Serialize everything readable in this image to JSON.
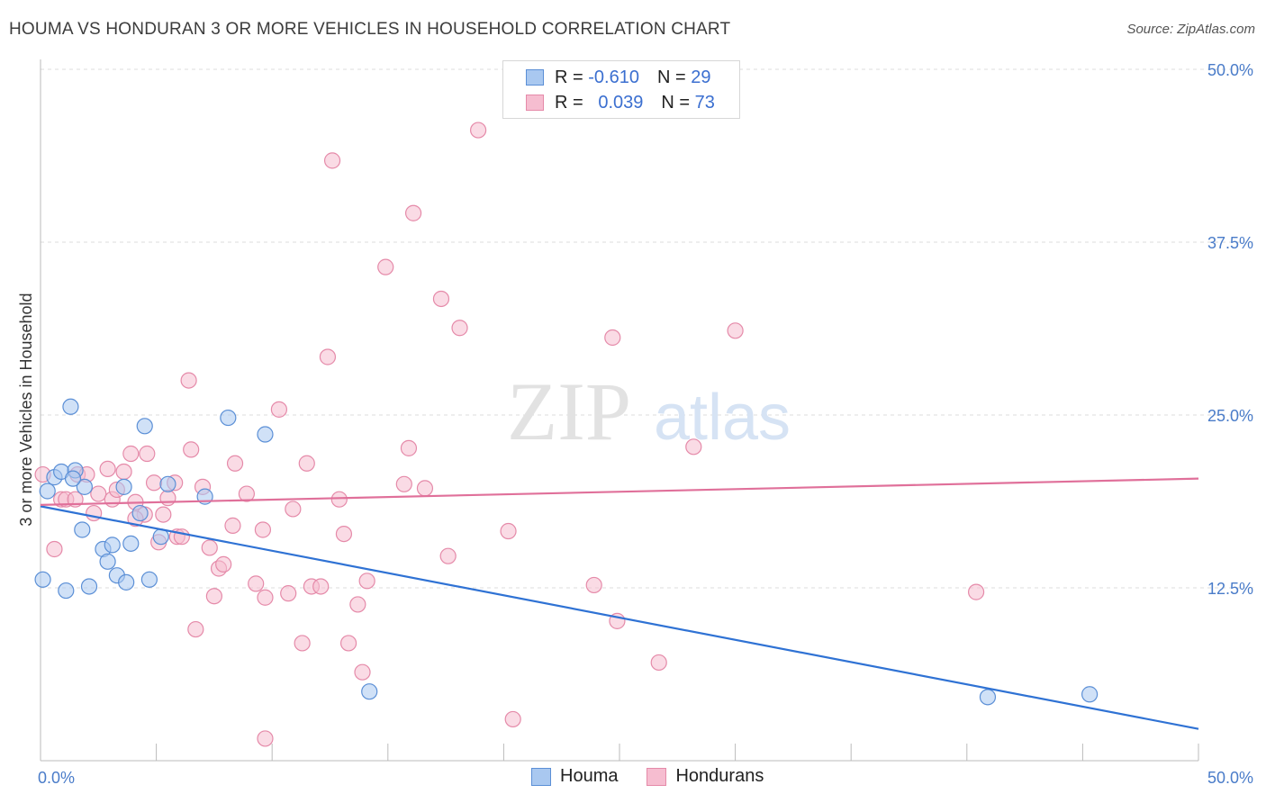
{
  "header": {
    "title": "HOUMA VS HONDURAN 3 OR MORE VEHICLES IN HOUSEHOLD CORRELATION CHART",
    "source": "Source: ZipAtlas.com"
  },
  "legend": {
    "rows": [
      {
        "r_label": "R =",
        "r_value": "-0.610",
        "n_label": "N =",
        "n_value": "29"
      },
      {
        "r_label": "R =",
        "r_value": "0.039",
        "n_label": "N =",
        "n_value": "73"
      }
    ]
  },
  "watermark": {
    "zip": "ZIP",
    "atlas": "atlas"
  },
  "chart_data": {
    "type": "scatter",
    "title": "HOUMA VS HONDURAN 3 OR MORE VEHICLES IN HOUSEHOLD CORRELATION CHART",
    "ylabel": "3 or more Vehicles in Household",
    "xlabel": "",
    "xlim": [
      0,
      50
    ],
    "ylim": [
      0,
      50
    ],
    "x_tick_labels": [
      "0.0%",
      "50.0%"
    ],
    "y_ticks": [
      12.5,
      25.0,
      37.5,
      50.0
    ],
    "y_tick_labels": [
      "12.5%",
      "25.0%",
      "37.5%",
      "50.0%"
    ],
    "grid": true,
    "legend_position": "top-center",
    "colors": {
      "houma_fill": "#a9c8f0",
      "houma_stroke": "#5b8fd6",
      "houma_line": "#2f72d4",
      "hond_fill": "#f6bdd0",
      "hond_stroke": "#e58aa9",
      "hond_line": "#e0709a"
    },
    "series": [
      {
        "name": "Houma",
        "trend": {
          "x": [
            0,
            50
          ],
          "y": [
            18.4,
            2.3
          ]
        },
        "points": [
          [
            0.1,
            13.1
          ],
          [
            0.3,
            19.5
          ],
          [
            0.6,
            20.5
          ],
          [
            0.9,
            20.9
          ],
          [
            1.1,
            12.3
          ],
          [
            1.3,
            25.6
          ],
          [
            1.5,
            21.0
          ],
          [
            1.8,
            16.7
          ],
          [
            1.9,
            19.8
          ],
          [
            2.1,
            12.6
          ],
          [
            2.7,
            15.3
          ],
          [
            2.9,
            14.4
          ],
          [
            3.1,
            15.6
          ],
          [
            3.3,
            13.4
          ],
          [
            3.6,
            19.8
          ],
          [
            3.7,
            12.9
          ],
          [
            3.9,
            15.7
          ],
          [
            4.3,
            17.9
          ],
          [
            4.5,
            24.2
          ],
          [
            4.7,
            13.1
          ],
          [
            5.2,
            16.2
          ],
          [
            5.5,
            20.0
          ],
          [
            7.1,
            19.1
          ],
          [
            8.1,
            24.8
          ],
          [
            9.7,
            23.6
          ],
          [
            14.2,
            5.0
          ],
          [
            40.9,
            4.6
          ],
          [
            45.3,
            4.8
          ],
          [
            1.4,
            20.4
          ]
        ]
      },
      {
        "name": "Hondurans",
        "trend": {
          "x": [
            0,
            50
          ],
          "y": [
            18.5,
            20.4
          ]
        },
        "points": [
          [
            0.1,
            20.7
          ],
          [
            0.6,
            15.3
          ],
          [
            0.9,
            18.9
          ],
          [
            1.1,
            18.9
          ],
          [
            1.5,
            18.9
          ],
          [
            1.6,
            20.7
          ],
          [
            2.0,
            20.7
          ],
          [
            2.3,
            17.9
          ],
          [
            2.5,
            19.3
          ],
          [
            3.1,
            18.9
          ],
          [
            3.3,
            19.6
          ],
          [
            3.6,
            20.9
          ],
          [
            3.9,
            22.2
          ],
          [
            4.1,
            18.7
          ],
          [
            4.5,
            17.8
          ],
          [
            4.6,
            22.2
          ],
          [
            4.9,
            20.1
          ],
          [
            5.1,
            15.8
          ],
          [
            5.3,
            17.8
          ],
          [
            5.5,
            19.0
          ],
          [
            5.9,
            16.2
          ],
          [
            6.1,
            16.2
          ],
          [
            6.4,
            27.5
          ],
          [
            6.5,
            22.5
          ],
          [
            6.7,
            9.5
          ],
          [
            7.0,
            19.8
          ],
          [
            7.3,
            15.4
          ],
          [
            7.5,
            11.9
          ],
          [
            7.7,
            13.9
          ],
          [
            7.9,
            14.2
          ],
          [
            8.3,
            17.0
          ],
          [
            8.4,
            21.5
          ],
          [
            8.9,
            19.3
          ],
          [
            9.3,
            12.8
          ],
          [
            9.6,
            16.7
          ],
          [
            9.7,
            11.8
          ],
          [
            9.7,
            1.6
          ],
          [
            10.3,
            25.4
          ],
          [
            10.7,
            12.1
          ],
          [
            10.9,
            18.2
          ],
          [
            11.3,
            8.5
          ],
          [
            11.5,
            21.5
          ],
          [
            11.7,
            12.6
          ],
          [
            12.1,
            12.6
          ],
          [
            12.6,
            43.4
          ],
          [
            12.9,
            18.9
          ],
          [
            13.1,
            16.4
          ],
          [
            13.3,
            8.5
          ],
          [
            13.7,
            11.3
          ],
          [
            13.9,
            6.4
          ],
          [
            14.1,
            13.0
          ],
          [
            14.9,
            35.7
          ],
          [
            15.7,
            20.0
          ],
          [
            15.9,
            22.6
          ],
          [
            16.1,
            39.6
          ],
          [
            16.6,
            19.7
          ],
          [
            17.3,
            33.4
          ],
          [
            17.6,
            14.8
          ],
          [
            18.1,
            31.3
          ],
          [
            18.9,
            45.6
          ],
          [
            12.4,
            29.2
          ],
          [
            20.4,
            3.0
          ],
          [
            20.2,
            16.6
          ],
          [
            23.9,
            12.7
          ],
          [
            24.7,
            30.6
          ],
          [
            24.9,
            10.1
          ],
          [
            26.7,
            7.1
          ],
          [
            28.2,
            22.7
          ],
          [
            30.0,
            31.1
          ],
          [
            40.4,
            12.2
          ],
          [
            5.8,
            20.1
          ],
          [
            4.1,
            17.5
          ],
          [
            2.9,
            21.1
          ]
        ]
      }
    ]
  },
  "bottom_legend": [
    {
      "label": "Houma"
    },
    {
      "label": "Hondurans"
    }
  ]
}
